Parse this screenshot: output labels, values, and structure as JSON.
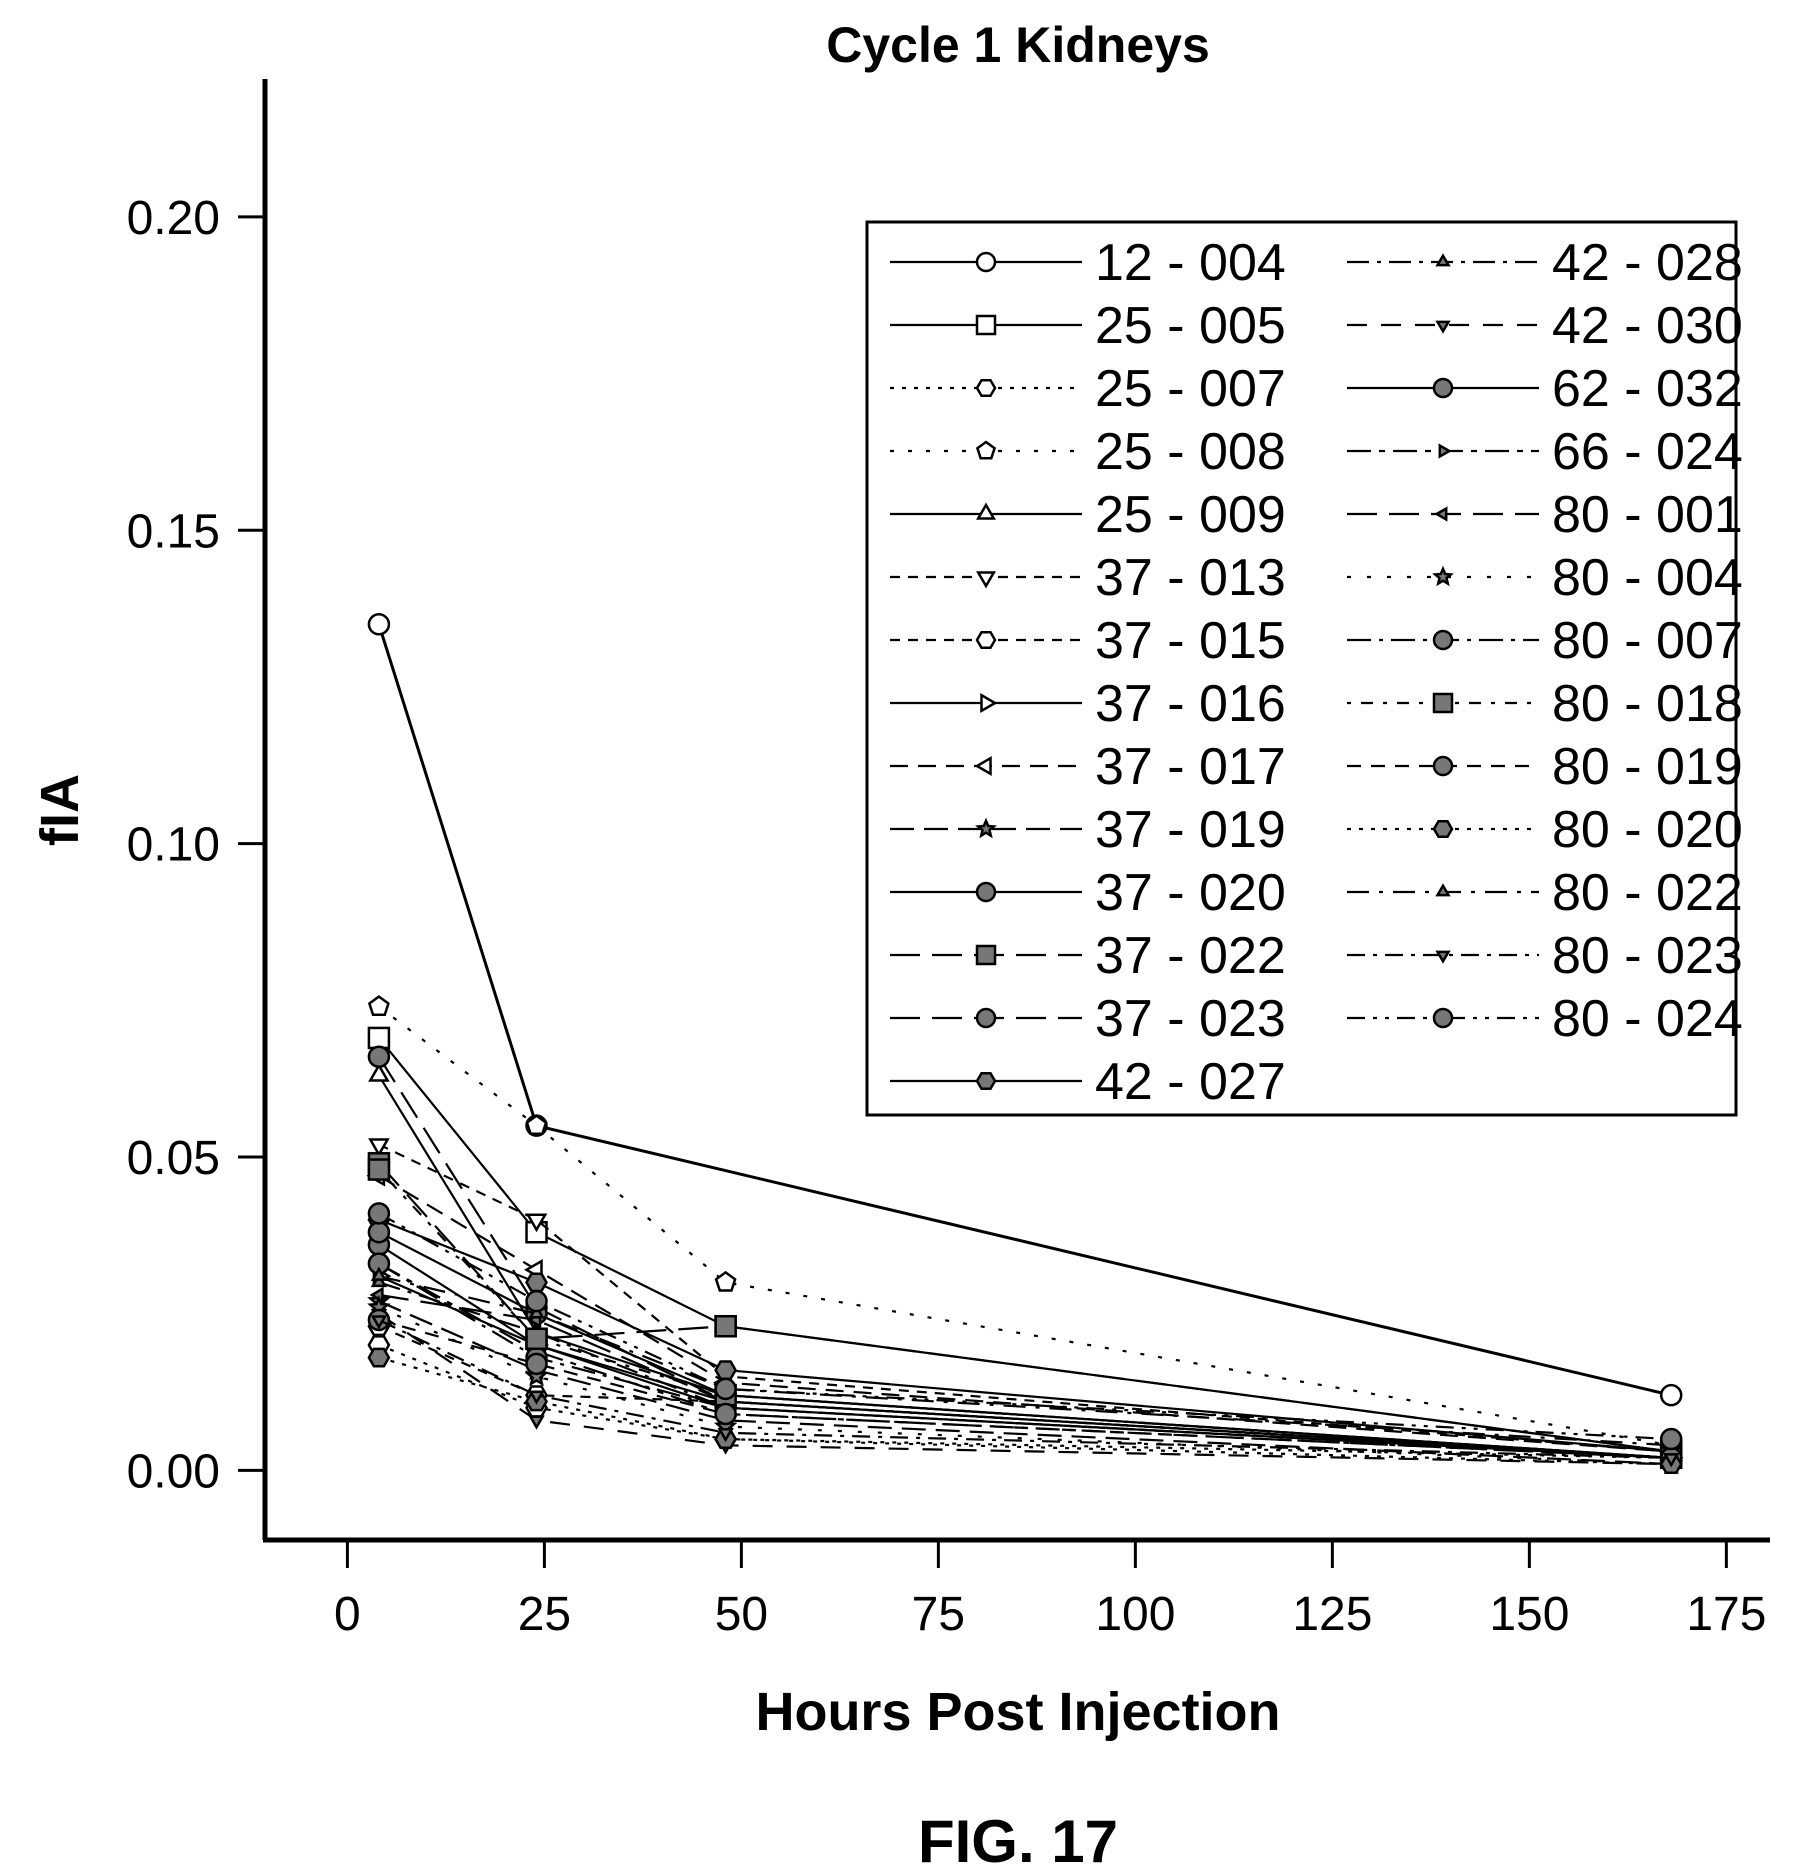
{
  "figure_label": "FIG. 17",
  "chart_data": {
    "type": "line",
    "title": "Cycle 1 Kidneys",
    "xlabel": "Hours Post Injection",
    "ylabel": "fIA",
    "xlim": [
      -5,
      178
    ],
    "ylim": [
      -0.006,
      0.222
    ],
    "xticks": [
      0,
      25,
      50,
      75,
      100,
      125,
      150,
      175
    ],
    "yticks": [
      0.0,
      0.05,
      0.1,
      0.15,
      0.2
    ],
    "ytick_labels": [
      "0.00",
      "0.05",
      "0.10",
      "0.15",
      "0.20"
    ],
    "grid": false,
    "legend_position": "top-right",
    "x": [
      4,
      24,
      48,
      168
    ],
    "series": [
      {
        "name": "12 - 004",
        "values": [
          0.135,
          0.055,
          null,
          0.012
        ]
      },
      {
        "name": "25 - 005",
        "values": [
          0.069,
          0.038,
          0.023,
          0.003
        ]
      },
      {
        "name": "25 - 007",
        "values": [
          0.02,
          0.01,
          0.005,
          0.002
        ]
      },
      {
        "name": "25 - 008",
        "values": [
          0.074,
          0.055,
          0.03,
          0.004
        ]
      },
      {
        "name": "25 - 009",
        "values": [
          0.063,
          0.022,
          0.012,
          0.002
        ]
      },
      {
        "name": "37 - 013",
        "values": [
          0.052,
          0.04,
          0.015,
          0.003
        ]
      },
      {
        "name": "37 - 015",
        "values": [
          0.023,
          0.012,
          0.011,
          0.002
        ]
      },
      {
        "name": "37 - 016",
        "values": [
          0.031,
          0.02,
          0.01,
          0.002
        ]
      },
      {
        "name": "37 - 017",
        "values": [
          0.047,
          0.032,
          0.014,
          0.003
        ]
      },
      {
        "name": "37 - 019",
        "values": [
          0.027,
          0.016,
          0.008,
          0.001
        ]
      },
      {
        "name": "37 - 020",
        "values": [
          0.036,
          0.02,
          0.011,
          0.002
        ]
      },
      {
        "name": "37 - 022",
        "values": [
          0.049,
          0.021,
          0.023,
          0.003
        ]
      },
      {
        "name": "37 - 023",
        "values": [
          0.066,
          0.026,
          0.011,
          0.002
        ]
      },
      {
        "name": "42 - 027",
        "values": [
          0.04,
          0.03,
          0.016,
          0.003
        ]
      },
      {
        "name": "42 - 028",
        "values": [
          0.03,
          0.022,
          0.01,
          0.002
        ]
      },
      {
        "name": "42 - 030",
        "values": [
          0.025,
          0.008,
          0.004,
          0.001
        ]
      },
      {
        "name": "62 - 032",
        "values": [
          0.038,
          0.025,
          0.012,
          0.002
        ]
      },
      {
        "name": "66 - 024",
        "values": [
          0.033,
          0.019,
          0.009,
          0.002
        ]
      },
      {
        "name": "80 - 001",
        "values": [
          0.028,
          0.024,
          0.011,
          0.002
        ]
      },
      {
        "name": "80 - 004",
        "values": [
          0.026,
          0.015,
          0.007,
          0.001
        ]
      },
      {
        "name": "80 - 007",
        "values": [
          0.033,
          0.018,
          0.01,
          0.002
        ]
      },
      {
        "name": "80 - 018",
        "values": [
          0.048,
          0.021,
          0.012,
          0.002
        ]
      },
      {
        "name": "80 - 019",
        "values": [
          0.024,
          0.017,
          0.009,
          0.002
        ]
      },
      {
        "name": "80 - 020",
        "values": [
          0.018,
          0.011,
          0.005,
          0.001
        ]
      },
      {
        "name": "80 - 022",
        "values": [
          0.031,
          0.025,
          0.013,
          0.004
        ]
      },
      {
        "name": "80 - 023",
        "values": [
          0.024,
          0.012,
          0.006,
          0.002
        ]
      },
      {
        "name": "80 - 024",
        "values": [
          0.041,
          0.027,
          0.013,
          0.005
        ]
      }
    ]
  }
}
